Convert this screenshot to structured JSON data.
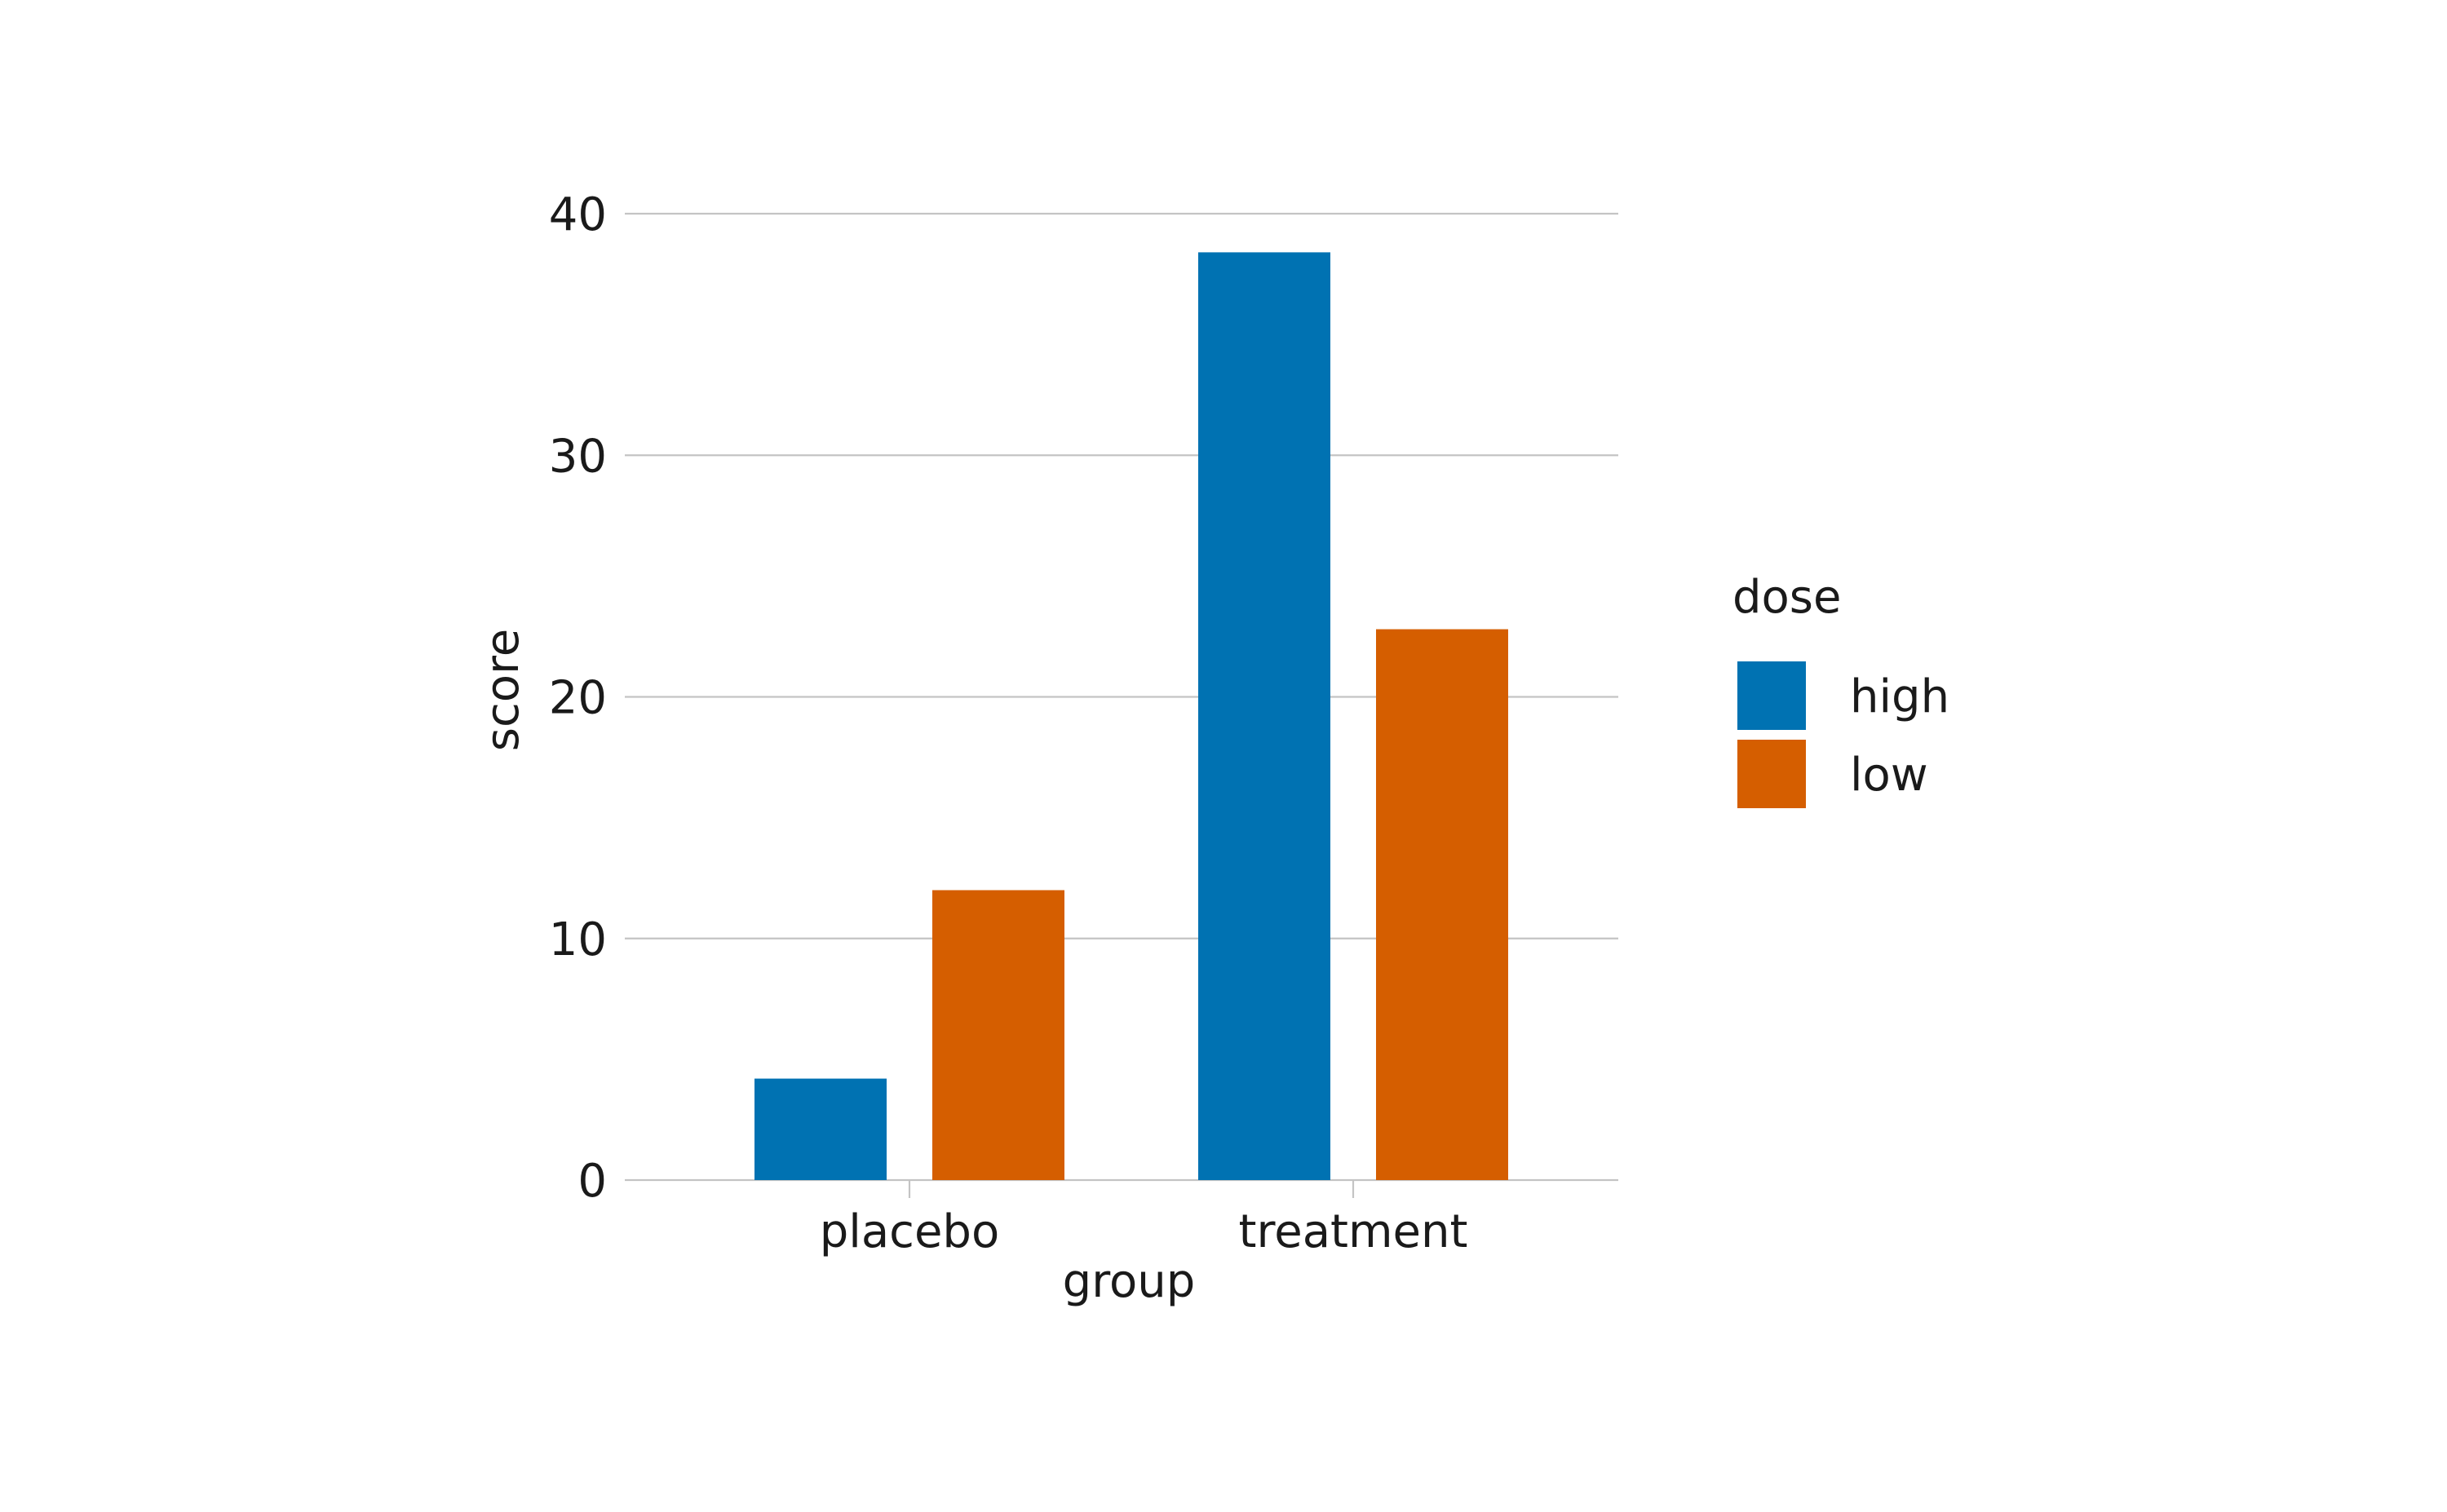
{
  "chart_data": {
    "type": "bar",
    "categories": [
      "placebo",
      "treatment"
    ],
    "series": [
      {
        "name": "high",
        "values": [
          4.2,
          38.4
        ],
        "color": "#0072B2"
      },
      {
        "name": "low",
        "values": [
          12.0,
          22.8
        ],
        "color": "#D55E00"
      }
    ],
    "title": "",
    "xlabel": "group",
    "ylabel": "score",
    "ylim": [
      0,
      40
    ],
    "yticks": [
      0,
      10,
      20,
      30,
      40
    ],
    "grid": "horizontal",
    "legend": {
      "title": "dose",
      "position": "right"
    }
  }
}
